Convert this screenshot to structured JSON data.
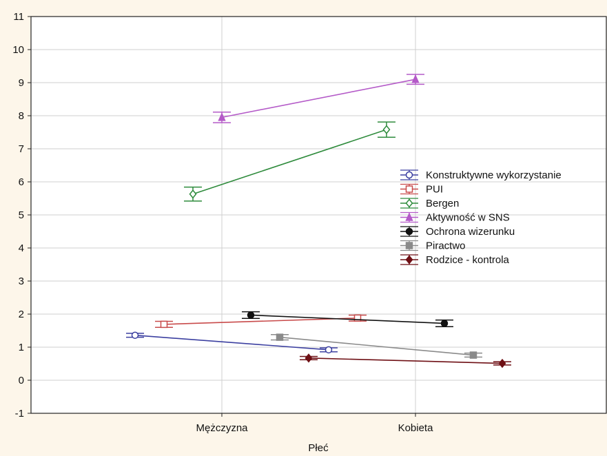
{
  "chart_data": {
    "type": "line",
    "xlabel": "Płeć",
    "ylabel": "",
    "ylim": [
      -1,
      11
    ],
    "yticks": [
      "-1",
      "0",
      "1",
      "2",
      "3",
      "4",
      "5",
      "6",
      "7",
      "8",
      "9",
      "10",
      "11"
    ],
    "categories": [
      "Mężczyzna",
      "Kobieta"
    ],
    "grid": true,
    "legend_position": "right",
    "series": [
      {
        "name": "Konstruktywne wykorzystanie",
        "color": "#3b3fa0",
        "marker": "circle-open",
        "offset": -0.45,
        "values": [
          1.36,
          0.92
        ],
        "errors": [
          0.06,
          0.06
        ]
      },
      {
        "name": "PUI",
        "color": "#c84a4a",
        "marker": "square-open",
        "offset": -0.3,
        "values": [
          1.69,
          1.88
        ],
        "errors": [
          0.09,
          0.09
        ]
      },
      {
        "name": "Bergen",
        "color": "#2e8b3c",
        "marker": "diamond-open",
        "offset": -0.15,
        "values": [
          5.63,
          7.58
        ],
        "errors": [
          0.21,
          0.23
        ]
      },
      {
        "name": "Aktywność w SNS",
        "color": "#b45ac8",
        "marker": "triangle",
        "offset": 0.0,
        "values": [
          7.95,
          9.1
        ],
        "errors": [
          0.16,
          0.15
        ]
      },
      {
        "name": "Ochrona wizerunku",
        "color": "#111111",
        "marker": "circle",
        "offset": 0.15,
        "values": [
          1.97,
          1.72
        ],
        "errors": [
          0.1,
          0.1
        ]
      },
      {
        "name": "Piractwo",
        "color": "#8a8a8a",
        "marker": "square",
        "offset": 0.3,
        "values": [
          1.3,
          0.76
        ],
        "errors": [
          0.08,
          0.06
        ]
      },
      {
        "name": "Rodzice - kontrola",
        "color": "#6e0f14",
        "marker": "diamond",
        "offset": 0.45,
        "values": [
          0.67,
          0.51
        ],
        "errors": [
          0.05,
          0.05
        ]
      }
    ]
  }
}
